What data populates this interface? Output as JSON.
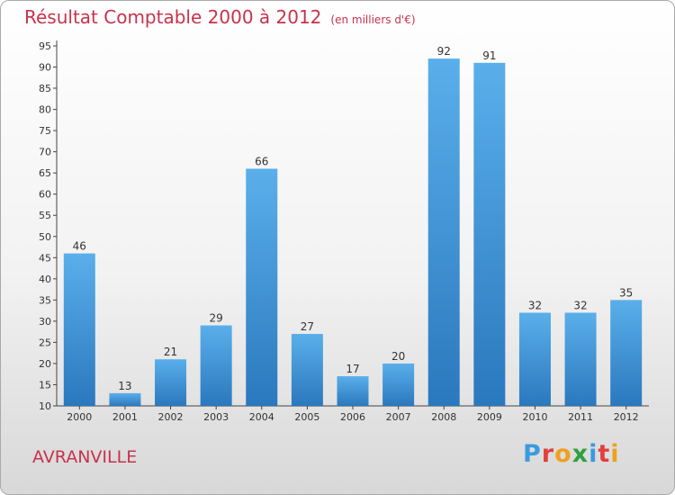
{
  "header": {
    "title": "Résultat Comptable 2000 à 2012",
    "unit": "(en milliers d'€)"
  },
  "footer": {
    "town": "AVRANVILLE",
    "logo_text": "Proxiti",
    "logo_colors": [
      "#3b9be0",
      "#e04040",
      "#f0a020",
      "#30a040",
      "#3b9be0",
      "#e04040",
      "#f0a020"
    ]
  },
  "colors": {
    "bar_top": "#5aafea",
    "bar_bottom": "#2a78be",
    "title": "#c8324b"
  },
  "chart_data": {
    "type": "bar",
    "title": "Résultat Comptable 2000 à 2012",
    "subtitle": "(en milliers d'€)",
    "xlabel": "",
    "ylabel": "",
    "categories": [
      "2000",
      "2001",
      "2002",
      "2003",
      "2004",
      "2005",
      "2006",
      "2007",
      "2008",
      "2009",
      "2010",
      "2011",
      "2012"
    ],
    "values": [
      46,
      13,
      21,
      29,
      66,
      27,
      17,
      20,
      92,
      91,
      32,
      32,
      35
    ],
    "ylim": [
      10,
      95
    ],
    "yticks": [
      10,
      15,
      20,
      25,
      30,
      35,
      40,
      45,
      50,
      55,
      60,
      65,
      70,
      75,
      80,
      85,
      90,
      95
    ],
    "grid": false,
    "legend": "none"
  }
}
